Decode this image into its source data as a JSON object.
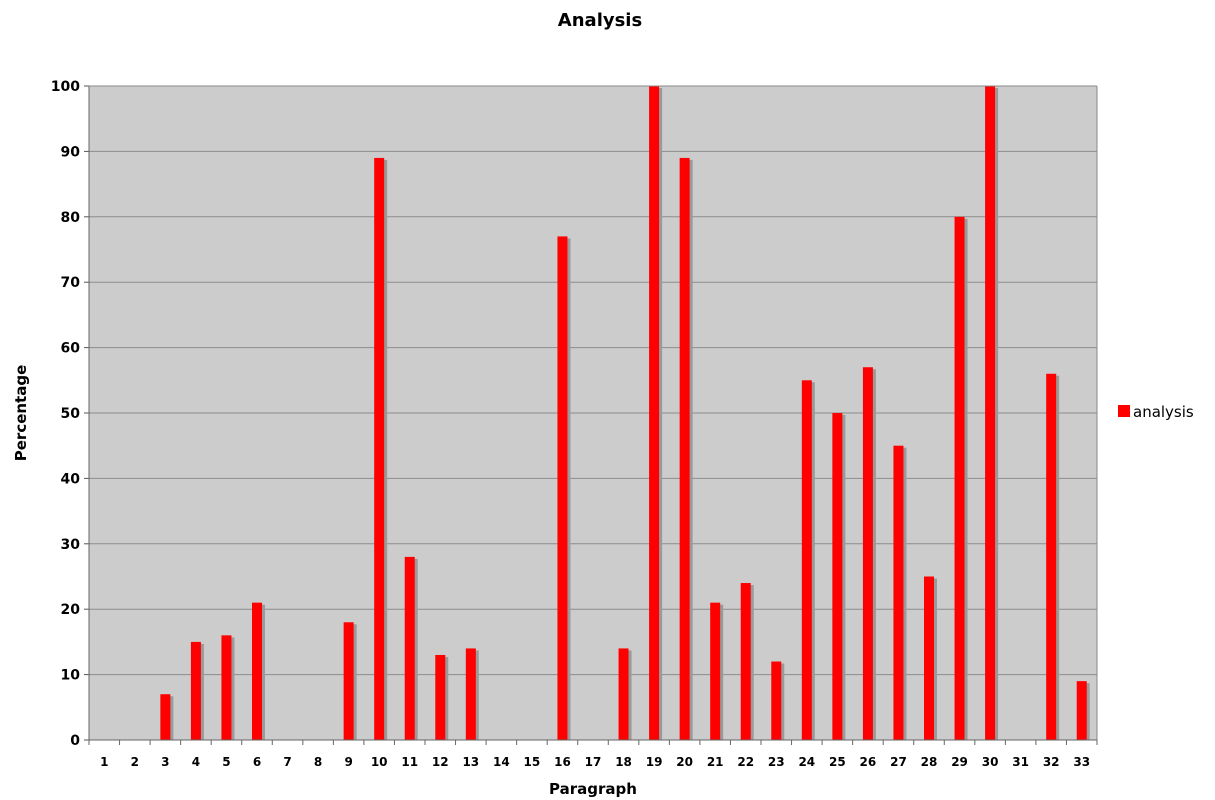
{
  "chart_data": {
    "type": "bar",
    "title": "Analysis",
    "xlabel": "Paragraph",
    "ylabel": "Percentage",
    "ylim": [
      0,
      100
    ],
    "yticks": [
      0,
      10,
      20,
      30,
      40,
      50,
      60,
      70,
      80,
      90,
      100
    ],
    "grid": true,
    "legend_position": "right",
    "categories": [
      "1",
      "2",
      "3",
      "4",
      "5",
      "6",
      "7",
      "8",
      "9",
      "10",
      "11",
      "12",
      "13",
      "14",
      "15",
      "16",
      "17",
      "18",
      "19",
      "20",
      "21",
      "22",
      "23",
      "24",
      "25",
      "26",
      "27",
      "28",
      "29",
      "30",
      "31",
      "32",
      "33"
    ],
    "series": [
      {
        "name": "analysis",
        "color": "#ff0000",
        "values": [
          0,
          0,
          7,
          15,
          16,
          21,
          0,
          0,
          18,
          89,
          28,
          13,
          14,
          0,
          0,
          77,
          0,
          14,
          100,
          89,
          21,
          24,
          12,
          55,
          50,
          57,
          45,
          25,
          80,
          100,
          0,
          56,
          9
        ]
      }
    ],
    "plot_background": "#cccccc",
    "gridline_color": "#8c8c8c"
  }
}
